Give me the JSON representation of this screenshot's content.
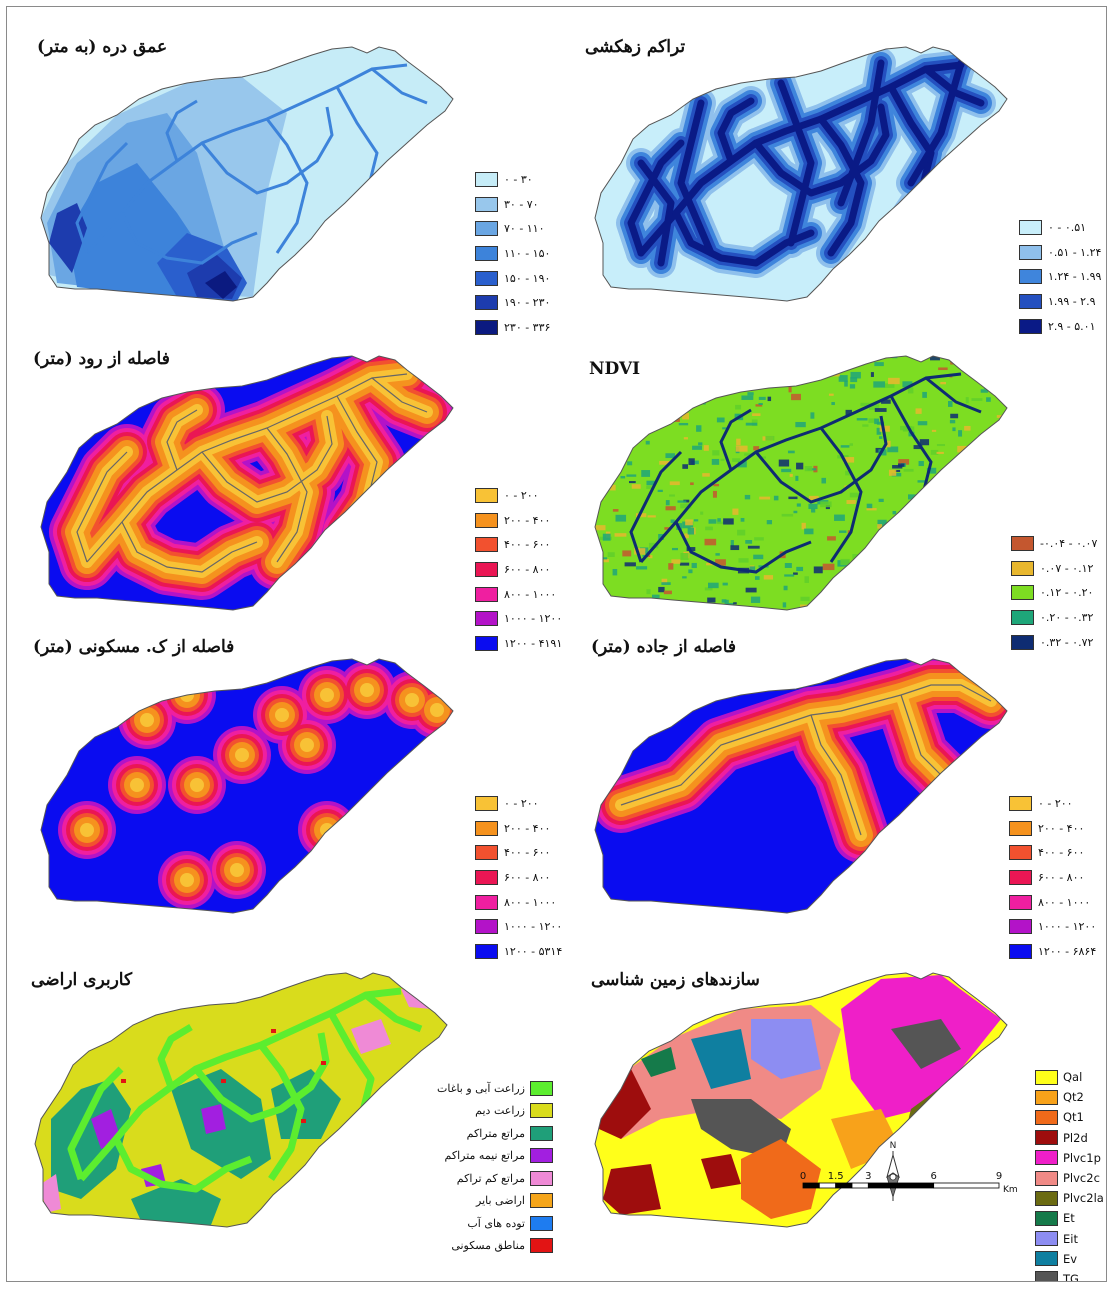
{
  "panels": {
    "valley": {
      "title": "عمق دره (به متر)",
      "legend": [
        {
          "label": "۰ - ۳۰",
          "color": "#c6ecf7"
        },
        {
          "label": "۳۰ - ۷۰",
          "color": "#98c7ec"
        },
        {
          "label": "۷۰ - ۱۱۰",
          "color": "#6aa6e3"
        },
        {
          "label": "۱۱۰ - ۱۵۰",
          "color": "#3d83da"
        },
        {
          "label": "۱۵۰ - ۱۹۰",
          "color": "#2a5fcd"
        },
        {
          "label": "۱۹۰ - ۲۳۰",
          "color": "#1d3cae"
        },
        {
          "label": "۲۳۰ - ۳۳۶",
          "color": "#0b1a80"
        }
      ]
    },
    "drainage": {
      "title": "تراکم زهکشی",
      "legend": [
        {
          "label": "۰ - ۰.۵۱",
          "color": "#c8eefa"
        },
        {
          "label": "۰.۵۱ - ۱.۲۴",
          "color": "#8fc0ec"
        },
        {
          "label": "۱.۲۴ - ۱.۹۹",
          "color": "#3f85dc"
        },
        {
          "label": "۱.۹۹ - ۲.۹",
          "color": "#2450c0"
        },
        {
          "label": "۲.۹ - ۵.۰۱",
          "color": "#0a1a86"
        }
      ]
    },
    "river": {
      "title": "فاصله از رود (متر)",
      "legend": [
        {
          "label": "۰ - ۲۰۰",
          "color": "#f8c236"
        },
        {
          "label": "۲۰۰ - ۴۰۰",
          "color": "#f5921e"
        },
        {
          "label": "۴۰۰ - ۶۰۰",
          "color": "#f2512f"
        },
        {
          "label": "۶۰۰ - ۸۰۰",
          "color": "#ea1654"
        },
        {
          "label": "۸۰۰ - ۱۰۰۰",
          "color": "#ef1fa0"
        },
        {
          "label": "۱۰۰۰ - ۱۲۰۰",
          "color": "#b313c8"
        },
        {
          "label": "۱۲۰۰ - ۴۱۹۱",
          "color": "#0a0cf0"
        }
      ]
    },
    "ndvi": {
      "title": "NDVI",
      "legend": [
        {
          "label": "-۰.۰۴ - ۰.۰۷",
          "color": "#c4572f"
        },
        {
          "label": "۰.۰۷ - ۰.۱۲",
          "color": "#e8b72e"
        },
        {
          "label": "۰.۱۲ - ۰.۲۰",
          "color": "#7ddd22"
        },
        {
          "label": "۰.۲۰ - ۰.۳۲",
          "color": "#1ea679"
        },
        {
          "label": "۰.۳۲ - ۰.۷۲",
          "color": "#0e2c72"
        }
      ]
    },
    "settle": {
      "title": "فاصله از ک. مسکونی (متر)",
      "legend": [
        {
          "label": "۰ - ۲۰۰",
          "color": "#f8c236"
        },
        {
          "label": "۲۰۰ - ۴۰۰",
          "color": "#f5921e"
        },
        {
          "label": "۴۰۰ - ۶۰۰",
          "color": "#f2512f"
        },
        {
          "label": "۶۰۰ - ۸۰۰",
          "color": "#ea1654"
        },
        {
          "label": "۸۰۰ - ۱۰۰۰",
          "color": "#ef1fa0"
        },
        {
          "label": "۱۰۰۰ - ۱۲۰۰",
          "color": "#b313c8"
        },
        {
          "label": "۱۲۰۰ - ۵۳۱۴",
          "color": "#0a0cf0"
        }
      ]
    },
    "road": {
      "title": "فاصله از جاده (متر)",
      "legend": [
        {
          "label": "۰ - ۲۰۰",
          "color": "#f8c236"
        },
        {
          "label": "۲۰۰ - ۴۰۰",
          "color": "#f5921e"
        },
        {
          "label": "۴۰۰ - ۶۰۰",
          "color": "#f2512f"
        },
        {
          "label": "۶۰۰ - ۸۰۰",
          "color": "#ea1654"
        },
        {
          "label": "۸۰۰ - ۱۰۰۰",
          "color": "#ef1fa0"
        },
        {
          "label": "۱۰۰۰ - ۱۲۰۰",
          "color": "#b313c8"
        },
        {
          "label": "۱۲۰۰ - ۶۸۶۴",
          "color": "#0a0cf0"
        }
      ]
    },
    "landuse": {
      "title": "کاربری اراضی",
      "legend": [
        {
          "label": "زراعت آبی و باغات",
          "color": "#5ced2f"
        },
        {
          "label": "زراعت دیم",
          "color": "#d9dc1c"
        },
        {
          "label": "مراتع متراکم",
          "color": "#1f9f79"
        },
        {
          "label": "مراتع نیمه متراکم",
          "color": "#a21fe0"
        },
        {
          "label": "مراتع کم تراکم",
          "color": "#ef8ad6"
        },
        {
          "label": "اراضی بایر",
          "color": "#f5a51a"
        },
        {
          "label": "توده های آب",
          "color": "#1e7cf0"
        },
        {
          "label": "مناطق مسکونی",
          "color": "#e21414"
        }
      ]
    },
    "geology": {
      "title": "سازندهای زمین شناسی",
      "legend": [
        {
          "label": "Qal",
          "color": "#ffff1a"
        },
        {
          "label": "Qt2",
          "color": "#f8a21a"
        },
        {
          "label": "Qt1",
          "color": "#f06a1a"
        },
        {
          "label": "Pl2d",
          "color": "#9e0d0d"
        },
        {
          "label": "Plvc1p",
          "color": "#ef1fc8"
        },
        {
          "label": "Plvc2c",
          "color": "#f08a86"
        },
        {
          "label": "Plvc2la",
          "color": "#6b6b12"
        },
        {
          "label": "Et",
          "color": "#157a4a"
        },
        {
          "label": "Eit",
          "color": "#8d8df2"
        },
        {
          "label": "Ev",
          "color": "#0f7fa0"
        },
        {
          "label": "TG",
          "color": "#555555"
        }
      ]
    }
  },
  "scale": {
    "ticks": [
      "0",
      "1.5",
      "3",
      "6",
      "9"
    ],
    "unit": "Km"
  },
  "north": {
    "label": "N"
  }
}
